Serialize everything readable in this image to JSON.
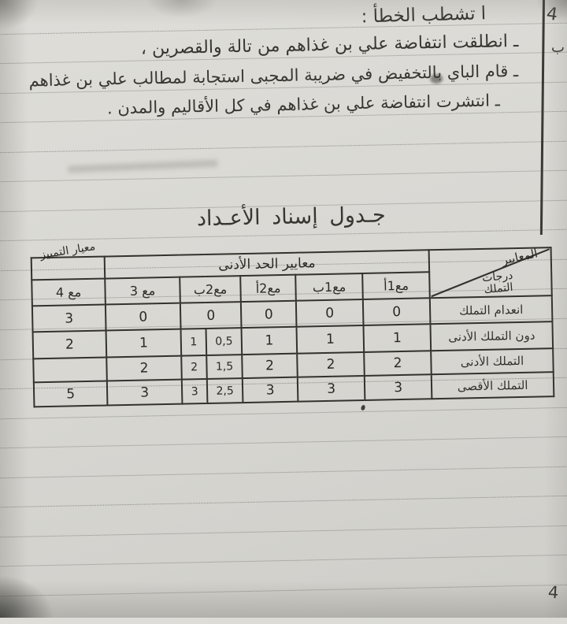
{
  "page": {
    "page_number": "4",
    "margin_marks": {
      "mark1": "4",
      "mark2": "ب"
    }
  },
  "handwriting": {
    "heading": "ا تشطب الخطأ :",
    "line1": "ـ انطلقت انتفاضة علي بن غذاهم من تالة والقصرين ،",
    "line2": "ـ قام الباي بالتخفيض في ضريبة المجبى استجابة لمطالب علي بن غذاهم",
    "line3": "ـ انتشرت انتفاضة علي بن غذاهم في كل الأقاليم والمدن .",
    "table_title": "جـدول إسناد الأعـداد"
  },
  "table": {
    "corner": {
      "top": "المعايير",
      "bottom": "درجات التملك"
    },
    "group_header": "معايير الحد الأدنى",
    "distinction_header": "معيار التمييز",
    "column_headers": {
      "m1a": "مع1أ",
      "m1b": "مع1ب",
      "m2a": "مع2أ",
      "m2b": "مع2ب",
      "m3": "مع 3",
      "m4": "مع 4"
    },
    "rows": [
      {
        "label": "انعدام التملك",
        "m1a": "0",
        "m1b": "0",
        "m2a": "0",
        "m2b": "0",
        "m3": "0",
        "m4": "3"
      },
      {
        "label": "دون التملك الأدنى",
        "m1a": "1",
        "m1b": "1",
        "m2a": "1",
        "m2b_r": "0,5",
        "m2b_l": "1",
        "m3": "1",
        "m4": "2"
      },
      {
        "label": "التملك الأدنى",
        "m1a": "2",
        "m1b": "2",
        "m2a": "2",
        "m2b_r": "1,5",
        "m2b_l": "2",
        "m3": "2",
        "m4": ""
      },
      {
        "label": "التملك الأقصى",
        "m1a": "3",
        "m1b": "3",
        "m2a": "3",
        "m2b_r": "2,5",
        "m2b_l": "3",
        "m3": "3",
        "m4": "5"
      }
    ]
  }
}
